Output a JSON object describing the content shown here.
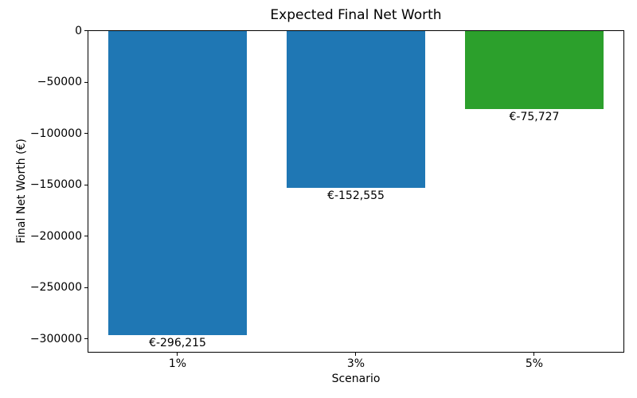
{
  "chart_data": {
    "type": "bar",
    "title": "Expected Final Net Worth",
    "xlabel": "Scenario",
    "ylabel": "Final Net Worth (€)",
    "categories": [
      "1%",
      "3%",
      "5%"
    ],
    "values": [
      -296215,
      -152555,
      -75727
    ],
    "bar_colors": [
      "#1f77b4",
      "#1f77b4",
      "#2ca02c"
    ],
    "bar_value_labels": [
      "€-296,215",
      "€-152,555",
      "€-75,727"
    ],
    "ylim": [
      -312500,
      0
    ],
    "yticks": [
      0,
      -50000,
      -100000,
      -150000,
      -200000,
      -250000,
      -300000
    ],
    "ytick_labels": [
      "0",
      "−50000",
      "−100000",
      "−150000",
      "−200000",
      "−250000",
      "−300000"
    ],
    "grid": false,
    "legend_position": null
  }
}
